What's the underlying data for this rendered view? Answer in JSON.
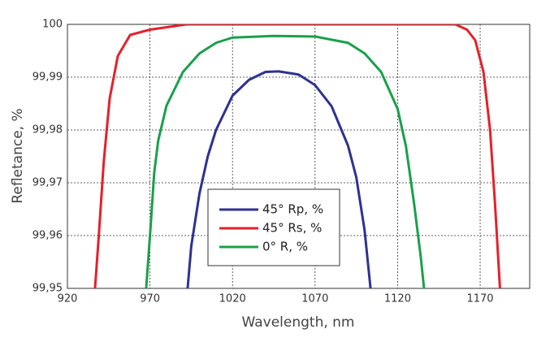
{
  "chart_data": {
    "type": "line",
    "xlabel": "Wavelength, nm",
    "ylabel": "Refletance, %",
    "xlim": [
      920,
      1200
    ],
    "xticks": [
      920,
      970,
      1020,
      1070,
      1120,
      1170
    ],
    "ylim": [
      99.95,
      100
    ],
    "yticks": [
      {
        "value": 99.95,
        "label": "99,95"
      },
      {
        "value": 99.96,
        "label": "99,96"
      },
      {
        "value": 99.97,
        "label": "99,97"
      },
      {
        "value": 99.98,
        "label": "99,98"
      },
      {
        "value": 99.99,
        "label": "99,99"
      },
      100
    ],
    "grid": true,
    "series": [
      {
        "name": "45° Rp, %",
        "color": "#2e3192",
        "x": [
          992.8,
          995,
          1000,
          1005,
          1010,
          1020,
          1030,
          1040,
          1048,
          1060,
          1070,
          1080,
          1090,
          1095,
          1100,
          1103.6
        ],
        "values": [
          99.95,
          99.958,
          99.968,
          99.975,
          99.98,
          99.9865,
          99.9895,
          99.991,
          99.9911,
          99.9905,
          99.9885,
          99.9845,
          99.977,
          99.971,
          99.961,
          99.95
        ]
      },
      {
        "name": "45° Rs, %",
        "color": "#e6202a",
        "x": [
          936.7,
          939,
          942,
          945.6,
          950.5,
          958,
          970,
          992,
          1155,
          1162,
          1167,
          1172,
          1176,
          1179,
          1182
        ],
        "values": [
          99.95,
          99.96,
          99.974,
          99.986,
          99.994,
          99.998,
          99.999,
          100,
          100,
          99.999,
          99.997,
          99.991,
          99.98,
          99.966,
          99.95
        ]
      },
      {
        "name": "0° R, %",
        "color": "#1aa04a",
        "x": [
          967.7,
          970,
          972.6,
          975,
          980,
          990,
          1000,
          1010,
          1020,
          1045,
          1070,
          1090,
          1100,
          1110,
          1120,
          1125,
          1130,
          1134,
          1136
        ],
        "values": [
          99.95,
          99.96,
          99.972,
          99.978,
          99.9846,
          99.991,
          99.9945,
          99.9965,
          99.9975,
          99.9978,
          99.9977,
          99.9965,
          99.9945,
          99.991,
          99.984,
          99.977,
          99.966,
          99.956,
          99.95
        ]
      }
    ]
  }
}
